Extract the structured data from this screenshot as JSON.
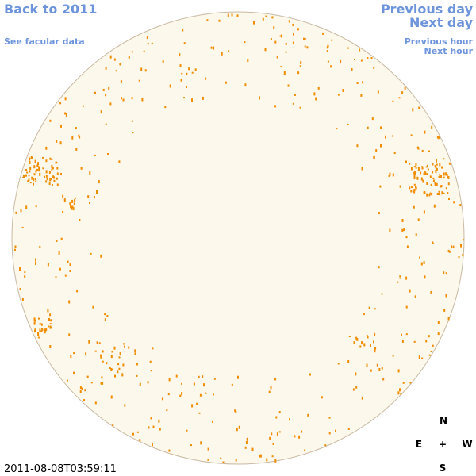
{
  "links": {
    "back": "Back to 2011",
    "facular": "See facular data",
    "prev_day": "Previous day",
    "next_day": "Next day",
    "prev_hour": "Previous hour",
    "next_hour": "Next hour"
  },
  "compass": {
    "north": "N",
    "east": "E",
    "center": "+",
    "west": "W",
    "south": "S"
  },
  "timestamp": "2011-08-08T03:59:11"
}
